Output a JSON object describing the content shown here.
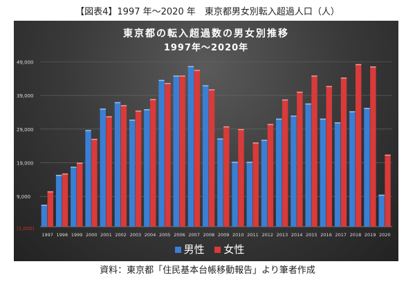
{
  "caption": "【図表4】1997 年～2020 年　東京都男女別転入超過人口（人）",
  "source": "資料：東京都「住民基本台帳移動報告」より筆者作成",
  "chart_data": {
    "type": "bar",
    "title": "東京都の転入超過数の男女別推移",
    "subtitle": "1997年～2020年",
    "categories": [
      "1997",
      "1998",
      "1999",
      "2000",
      "2001",
      "2002",
      "2003",
      "2004",
      "2005",
      "2006",
      "2007",
      "2008",
      "2009",
      "2010",
      "2011",
      "2012",
      "2013",
      "2014",
      "2015",
      "2016",
      "2017",
      "2018",
      "2019",
      "2020"
    ],
    "series": [
      {
        "name": "男性",
        "color": "#3a7fd5",
        "values": [
          6500,
          15400,
          17800,
          28700,
          35100,
          37000,
          31800,
          34900,
          43600,
          44900,
          47700,
          42000,
          26200,
          19300,
          19300,
          25800,
          32100,
          33000,
          36600,
          32100,
          31000,
          34300,
          35300,
          9500
        ]
      },
      {
        "name": "女性",
        "color": "#d93a3a",
        "values": [
          10500,
          15800,
          19000,
          26100,
          32800,
          36100,
          34500,
          37900,
          42700,
          44900,
          46600,
          40800,
          29800,
          29000,
          25000,
          30500,
          37800,
          40100,
          44900,
          41800,
          44300,
          48300,
          47600,
          21400
        ]
      }
    ],
    "yticks": [
      {
        "value": -1000,
        "label": "(1,000)",
        "color": "#c0392b"
      },
      {
        "value": 9000,
        "label": "9,000"
      },
      {
        "value": 19000,
        "label": "19,000"
      },
      {
        "value": 29000,
        "label": "29,000"
      },
      {
        "value": 39000,
        "label": "39,000"
      },
      {
        "value": 49000,
        "label": "49,000"
      }
    ],
    "ylim": [
      -1000,
      49000
    ],
    "grid": true,
    "legend": "bottom"
  }
}
